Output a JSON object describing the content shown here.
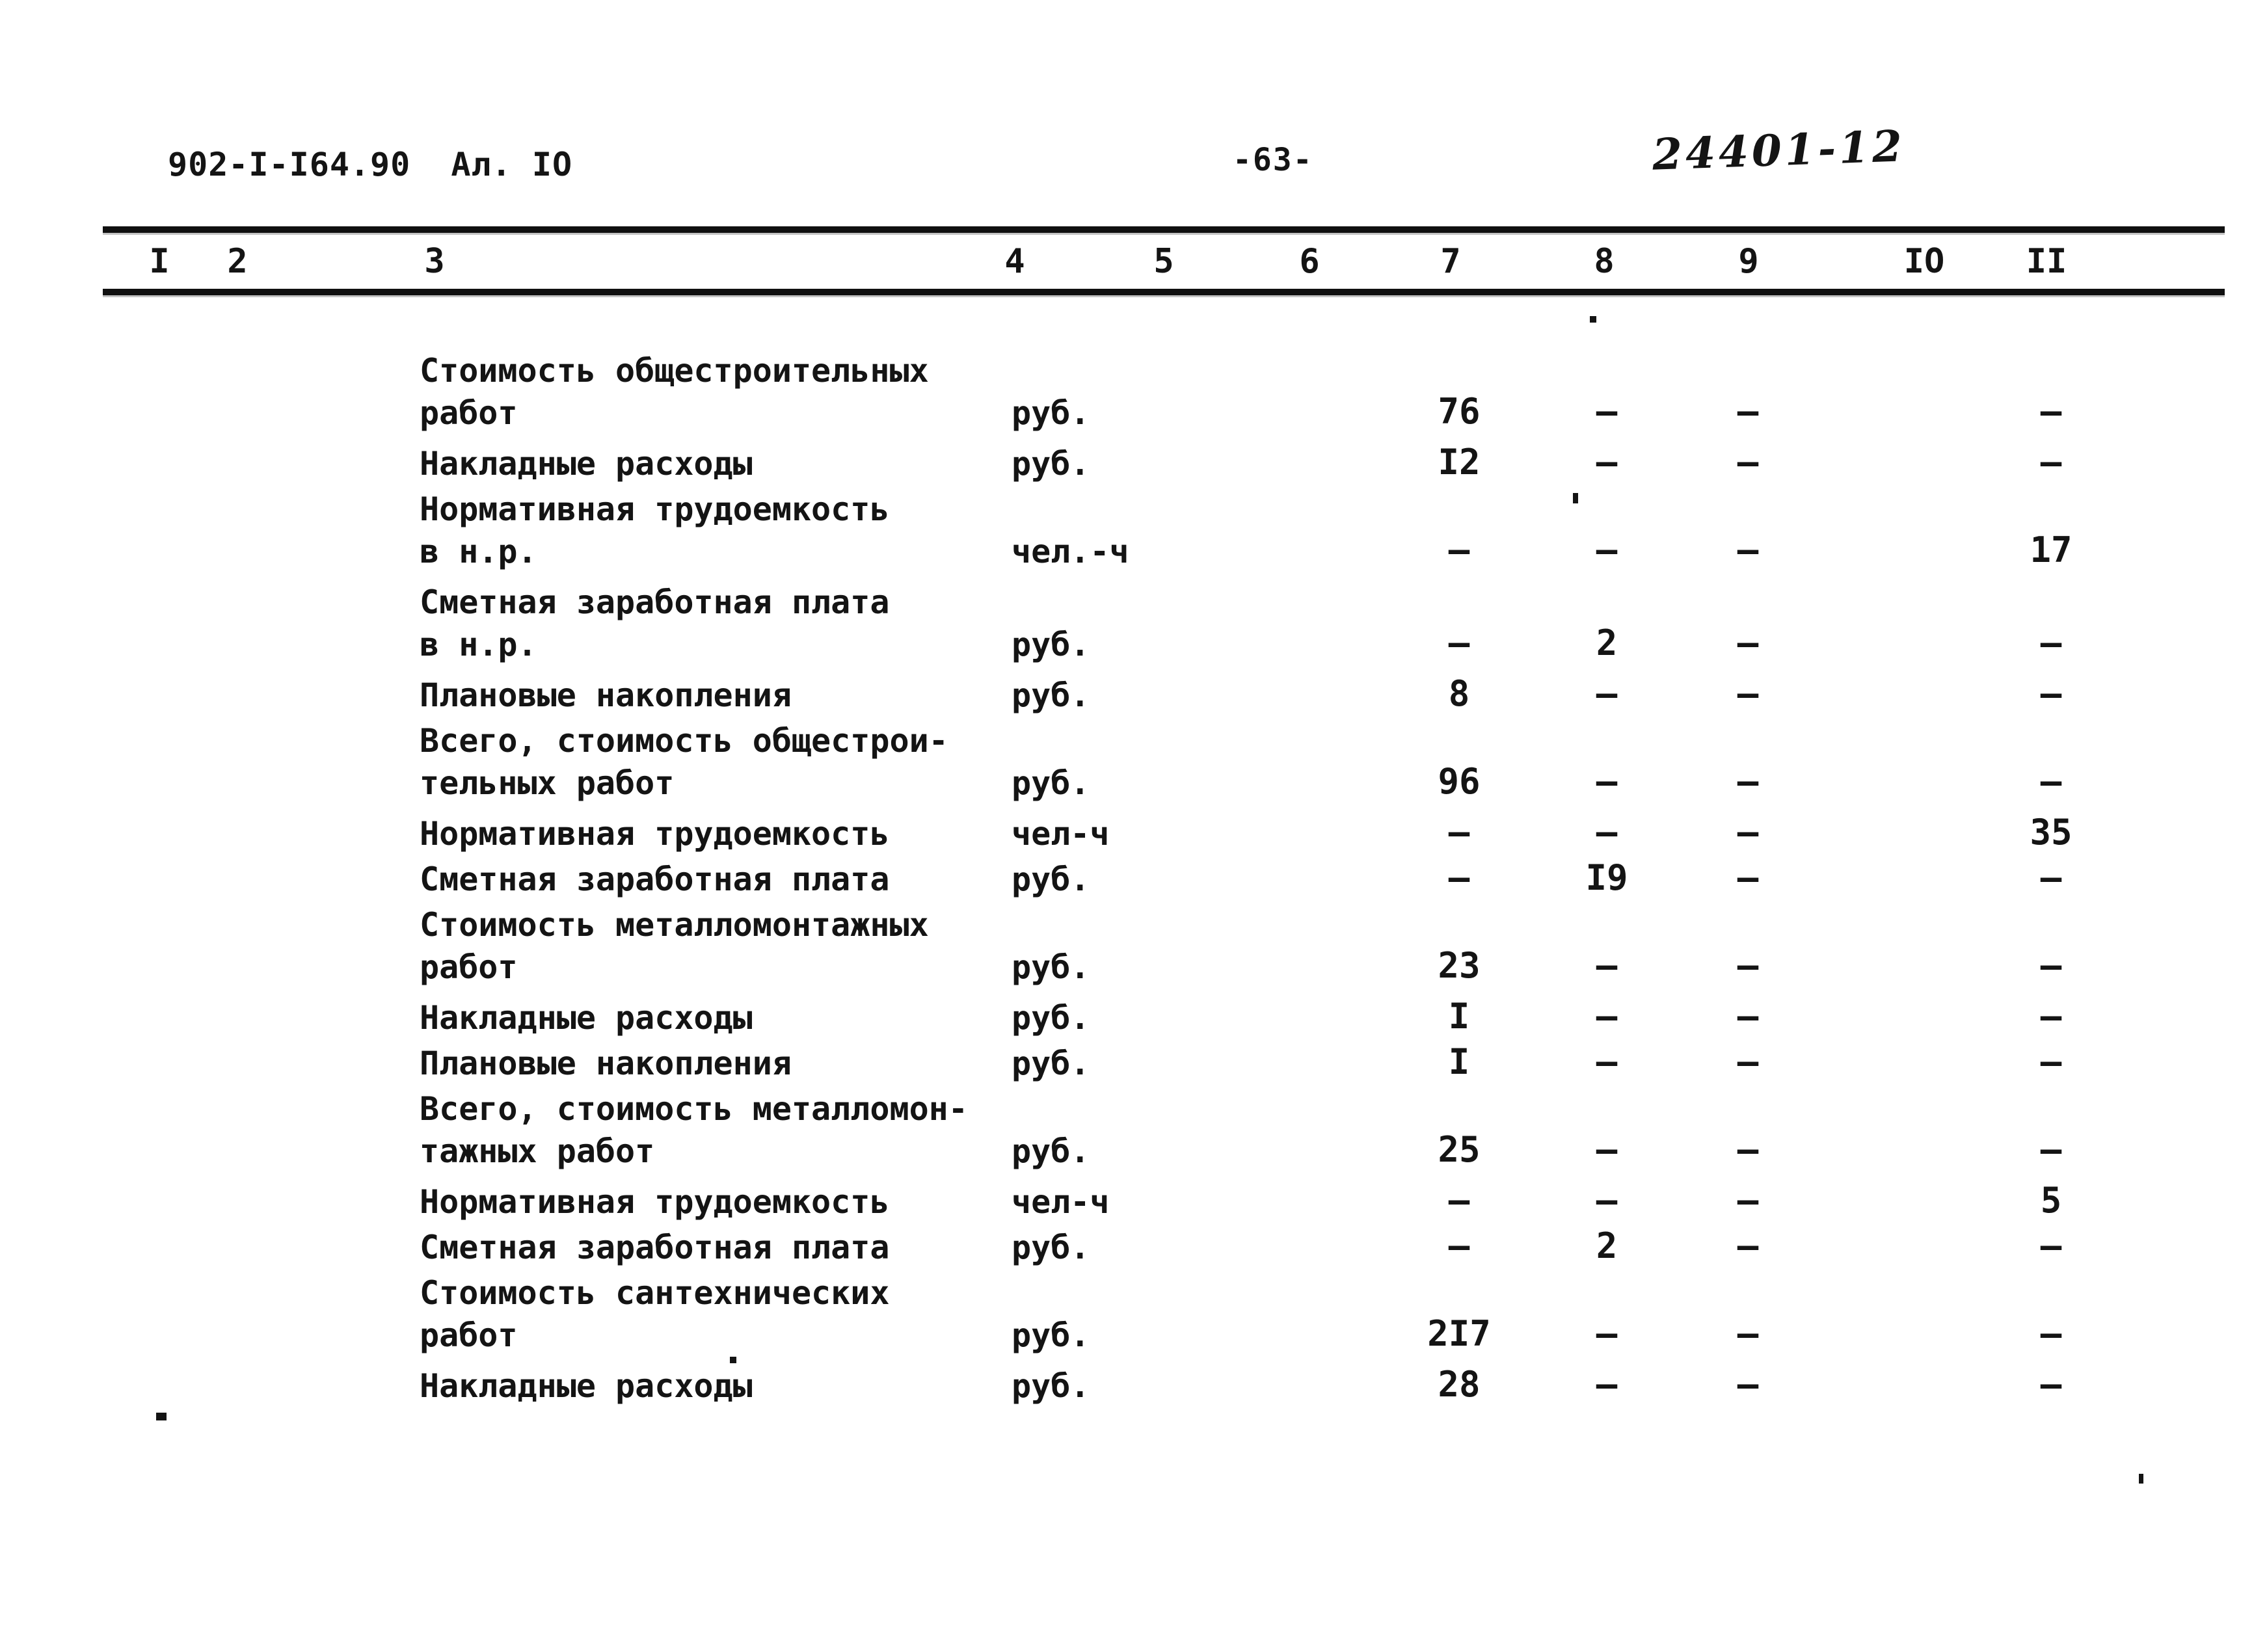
{
  "page": {
    "doc_number": "902-I-I64.90  Ал. IO",
    "page_number": "-63-",
    "stamp": "24401-12"
  },
  "table": {
    "column_headers": [
      "I",
      "2",
      "3",
      "4",
      "5",
      "6",
      "7",
      "8",
      "9",
      "IO",
      "II"
    ],
    "rows": [
      {
        "label": [
          "Стоимость общестроительных",
          "работ"
        ],
        "unit": "руб.",
        "c7": "76",
        "c8": "—",
        "c9": "—",
        "c10": "",
        "c11": "—"
      },
      {
        "label": [
          "Накладные расходы"
        ],
        "unit": "руб.",
        "c7": "I2",
        "c8": "—",
        "c9": "—",
        "c10": "",
        "c11": "—"
      },
      {
        "label": [
          "Нормативная трудоемкость",
          "в н.р."
        ],
        "unit": "чел.-ч",
        "c7": "—",
        "c8": "—",
        "c9": "—",
        "c10": "",
        "c11": "17"
      },
      {
        "label": [
          "Сметная заработная плата",
          "в н.р."
        ],
        "unit": "руб.",
        "c7": "—",
        "c8": "2",
        "c9": "—",
        "c10": "",
        "c11": "—"
      },
      {
        "label": [
          "Плановые накопления"
        ],
        "unit": "руб.",
        "c7": "8",
        "c8": "—",
        "c9": "—",
        "c10": "",
        "c11": "—"
      },
      {
        "label": [
          "Всего, стоимость общестрои-",
          "тельных работ"
        ],
        "unit": "руб.",
        "c7": "96",
        "c8": "—",
        "c9": "—",
        "c10": "",
        "c11": "—"
      },
      {
        "label": [
          "Нормативная трудоемкость"
        ],
        "unit": "чел-ч",
        "c7": "—",
        "c8": "—",
        "c9": "—",
        "c10": "",
        "c11": "35"
      },
      {
        "label": [
          "Сметная заработная плата"
        ],
        "unit": "руб.",
        "c7": "—",
        "c8": "I9",
        "c9": "—",
        "c10": "",
        "c11": "—"
      },
      {
        "label": [
          "Стоимость металломонтажных",
          "работ"
        ],
        "unit": "руб.",
        "c7": "23",
        "c8": "—",
        "c9": "—",
        "c10": "",
        "c11": "—"
      },
      {
        "label": [
          "Накладные расходы"
        ],
        "unit": "руб.",
        "c7": "I",
        "c8": "—",
        "c9": "—",
        "c10": "",
        "c11": "—"
      },
      {
        "label": [
          "Плановые накопления"
        ],
        "unit": "руб.",
        "c7": "I",
        "c8": "—",
        "c9": "—",
        "c10": "",
        "c11": "—"
      },
      {
        "label": [
          "Всего, стоимость металломон-",
          "тажных работ"
        ],
        "unit": "руб.",
        "c7": "25",
        "c8": "—",
        "c9": "—",
        "c10": "",
        "c11": "—"
      },
      {
        "label": [
          "Нормативная трудоемкость"
        ],
        "unit": "чел-ч",
        "c7": "—",
        "c8": "—",
        "c9": "—",
        "c10": "",
        "c11": "5"
      },
      {
        "label": [
          "Сметная заработная плата"
        ],
        "unit": "руб.",
        "c7": "—",
        "c8": "2",
        "c9": "—",
        "c10": "",
        "c11": "—"
      },
      {
        "label": [
          "Стоимость сантехнических",
          "работ"
        ],
        "unit": "руб.",
        "c7": "2I7",
        "c8": "—",
        "c9": "—",
        "c10": "",
        "c11": "—"
      },
      {
        "label": [
          "Накладные расходы"
        ],
        "unit": "руб.",
        "c7": "28",
        "c8": "—",
        "c9": "—",
        "c10": "",
        "c11": "—"
      }
    ]
  }
}
